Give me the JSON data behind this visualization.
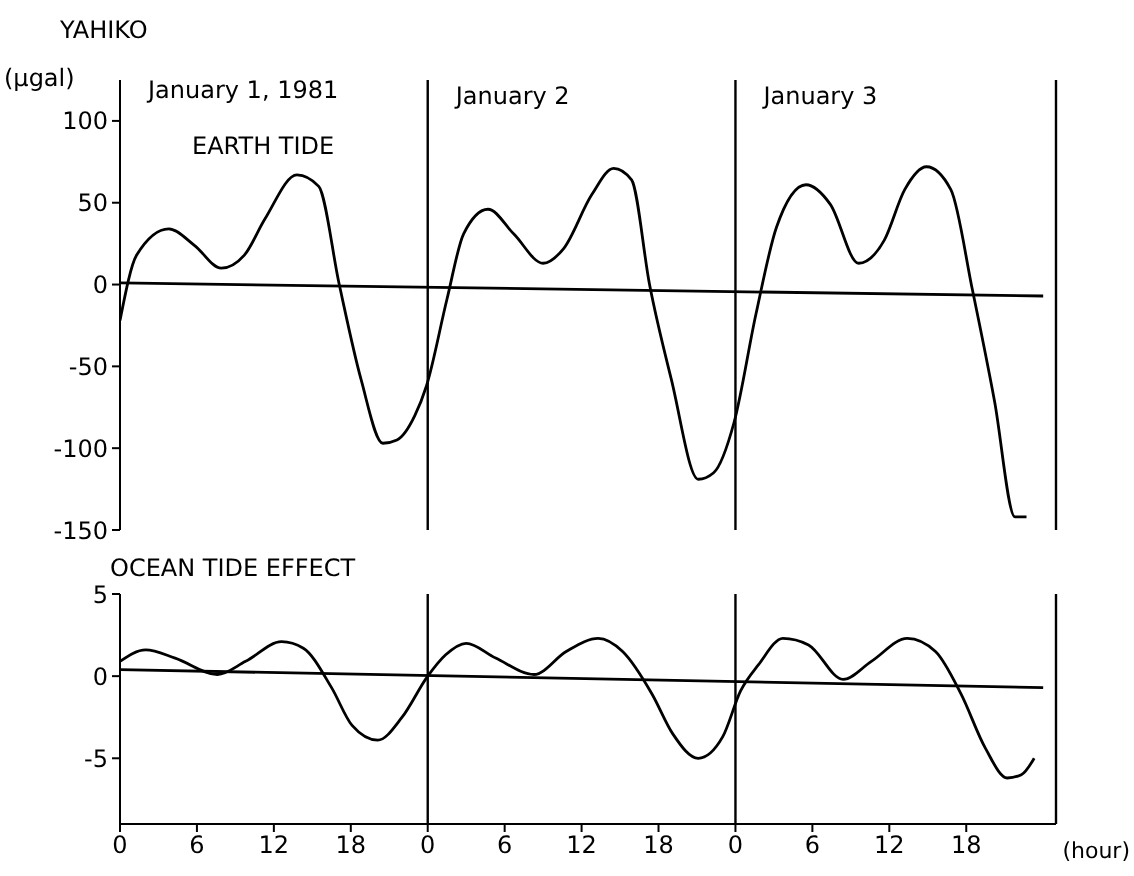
{
  "chart_data": [
    {
      "type": "line",
      "title": "YAHIKO",
      "ylabel": "(μgal)",
      "annotations": [
        "January 1, 1981",
        "EARTH TIDE"
      ],
      "marker": "none",
      "tick_labels": "y",
      "xlim": [
        "1981-01-01T00:00",
        "1981-01-04T01:00"
      ],
      "ylim": [
        -150,
        125
      ],
      "yticks": [
        -150,
        -100,
        -50,
        0,
        50,
        100
      ],
      "ref_lines": [
        {
          "axis": "x",
          "value": "1981-01-02T00:00",
          "label": "January 2"
        },
        {
          "axis": "x",
          "value": "1981-01-03T00:00",
          "label": "January 3"
        }
      ],
      "series": [
        {
          "color": "#000000",
          "x": [
            "1981-01-01T00:00",
            "1981-01-01T01:18",
            "1981-01-01T03:48",
            "1981-01-01T05:48",
            "1981-01-01T07:54",
            "1981-01-01T09:42",
            "1981-01-01T11:18",
            "1981-01-01T13:48",
            "1981-01-01T15:30",
            "1981-01-01T17:06",
            "1981-01-01T18:48",
            "1981-01-01T20:30",
            "1981-01-01T21:36",
            "1981-01-01T23:00",
            "1981-01-01T23:54",
            "1981-01-02T01:30",
            "1981-01-02T02:48",
            "1981-01-02T04:42",
            "1981-01-02T06:42",
            "1981-01-02T09:00",
            "1981-01-02T10:36",
            "1981-01-02T12:48",
            "1981-01-02T14:30",
            "1981-01-02T15:54",
            "1981-01-02T17:18",
            "1981-01-02T19:00",
            "1981-01-02T21:06",
            "1981-01-02T22:18",
            "1981-01-02T23:54",
            "1981-01-03T01:36",
            "1981-01-03T03:12",
            "1981-01-03T05:30",
            "1981-01-03T07:24",
            "1981-01-03T09:36",
            "1981-01-03T11:36",
            "1981-01-03T13:12",
            "1981-01-03T14:54",
            "1981-01-03T16:48",
            "1981-01-03T18:30",
            "1981-01-03T20:12",
            "1981-01-03T21:48",
            "1981-01-03T22:42"
          ],
          "values": [
            -22,
            18,
            34,
            24,
            10,
            18,
            40,
            67,
            60,
            0,
            -58,
            -97,
            -95,
            -80,
            -62,
            -9,
            31,
            46,
            31,
            13,
            22,
            55,
            71,
            64,
            0,
            -58,
            -119,
            -115,
            -84,
            -18,
            35,
            61,
            49,
            13,
            27,
            58,
            72,
            58,
            -4,
            -71,
            -142,
            -142
          ]
        },
        {
          "color": "#000000",
          "x": [
            "1981-01-01T00:00",
            "1981-01-04T00:00"
          ],
          "values": [
            1,
            -7
          ]
        }
      ]
    },
    {
      "type": "line",
      "title": "OCEAN TIDE EFFECT",
      "xlabel": "(hour)",
      "marker": "none",
      "xlim": [
        "1981-01-01T00:00",
        "1981-01-04T01:00"
      ],
      "ylim": [
        -9,
        5
      ],
      "yticks": [
        -5,
        0,
        5
      ],
      "xticks": [
        {
          "value": "1981-01-01T00:00",
          "label": "0"
        },
        {
          "value": "1981-01-01T06:00",
          "label": "6"
        },
        {
          "value": "1981-01-01T12:00",
          "label": "12"
        },
        {
          "value": "1981-01-01T18:00",
          "label": "18"
        },
        {
          "value": "1981-01-02T00:00",
          "label": "0"
        },
        {
          "value": "1981-01-02T06:00",
          "label": "6"
        },
        {
          "value": "1981-01-02T12:00",
          "label": "12"
        },
        {
          "value": "1981-01-02T18:00",
          "label": "18"
        },
        {
          "value": "1981-01-03T00:00",
          "label": "0"
        },
        {
          "value": "1981-01-03T06:00",
          "label": "6"
        },
        {
          "value": "1981-01-03T12:00",
          "label": "12"
        },
        {
          "value": "1981-01-03T18:00",
          "label": "18"
        }
      ],
      "ref_lines": [
        {
          "axis": "x",
          "value": "1981-01-02T00:00"
        },
        {
          "axis": "x",
          "value": "1981-01-03T00:00"
        }
      ],
      "series": [
        {
          "color": "#000000",
          "x": [
            "1981-01-01T00:00",
            "1981-01-01T02:00",
            "1981-01-01T04:18",
            "1981-01-01T07:36",
            "1981-01-01T09:48",
            "1981-01-01T12:36",
            "1981-01-01T14:18",
            "1981-01-01T16:30",
            "1981-01-01T18:06",
            "1981-01-01T20:06",
            "1981-01-01T22:00",
            "1981-01-02T00:00",
            "1981-01-02T01:24",
            "1981-01-02T03:00",
            "1981-01-02T05:18",
            "1981-01-02T08:18",
            "1981-01-02T10:48",
            "1981-01-02T13:18",
            "1981-01-02T15:12",
            "1981-01-02T17:30",
            "1981-01-02T19:06",
            "1981-01-02T21:06",
            "1981-01-02T23:00",
            "1981-01-03T00:24",
            "1981-01-03T01:48",
            "1981-01-03T03:42",
            "1981-01-03T05:42",
            "1981-01-03T08:24",
            "1981-01-03T10:36",
            "1981-01-03T13:24",
            "1981-01-03T15:36",
            "1981-01-03T17:36",
            "1981-01-03T19:30",
            "1981-01-03T21:12",
            "1981-01-03T22:18",
            "1981-01-03T23:18"
          ],
          "values": [
            0.9,
            1.6,
            1.1,
            0.1,
            0.9,
            2.1,
            1.7,
            -0.7,
            -3,
            -3.9,
            -2.5,
            0,
            1.3,
            2,
            1.1,
            0.1,
            1.5,
            2.3,
            1.5,
            -1.1,
            -3.5,
            -5,
            -3.7,
            -0.9,
            0.7,
            2.3,
            1.9,
            -0.2,
            0.9,
            2.3,
            1.5,
            -1.1,
            -4.4,
            -6.2,
            -6,
            -5
          ]
        },
        {
          "color": "#000000",
          "x": [
            "1981-01-01T00:00",
            "1981-01-04T00:00"
          ],
          "values": [
            0.4,
            -0.7
          ]
        }
      ]
    }
  ]
}
